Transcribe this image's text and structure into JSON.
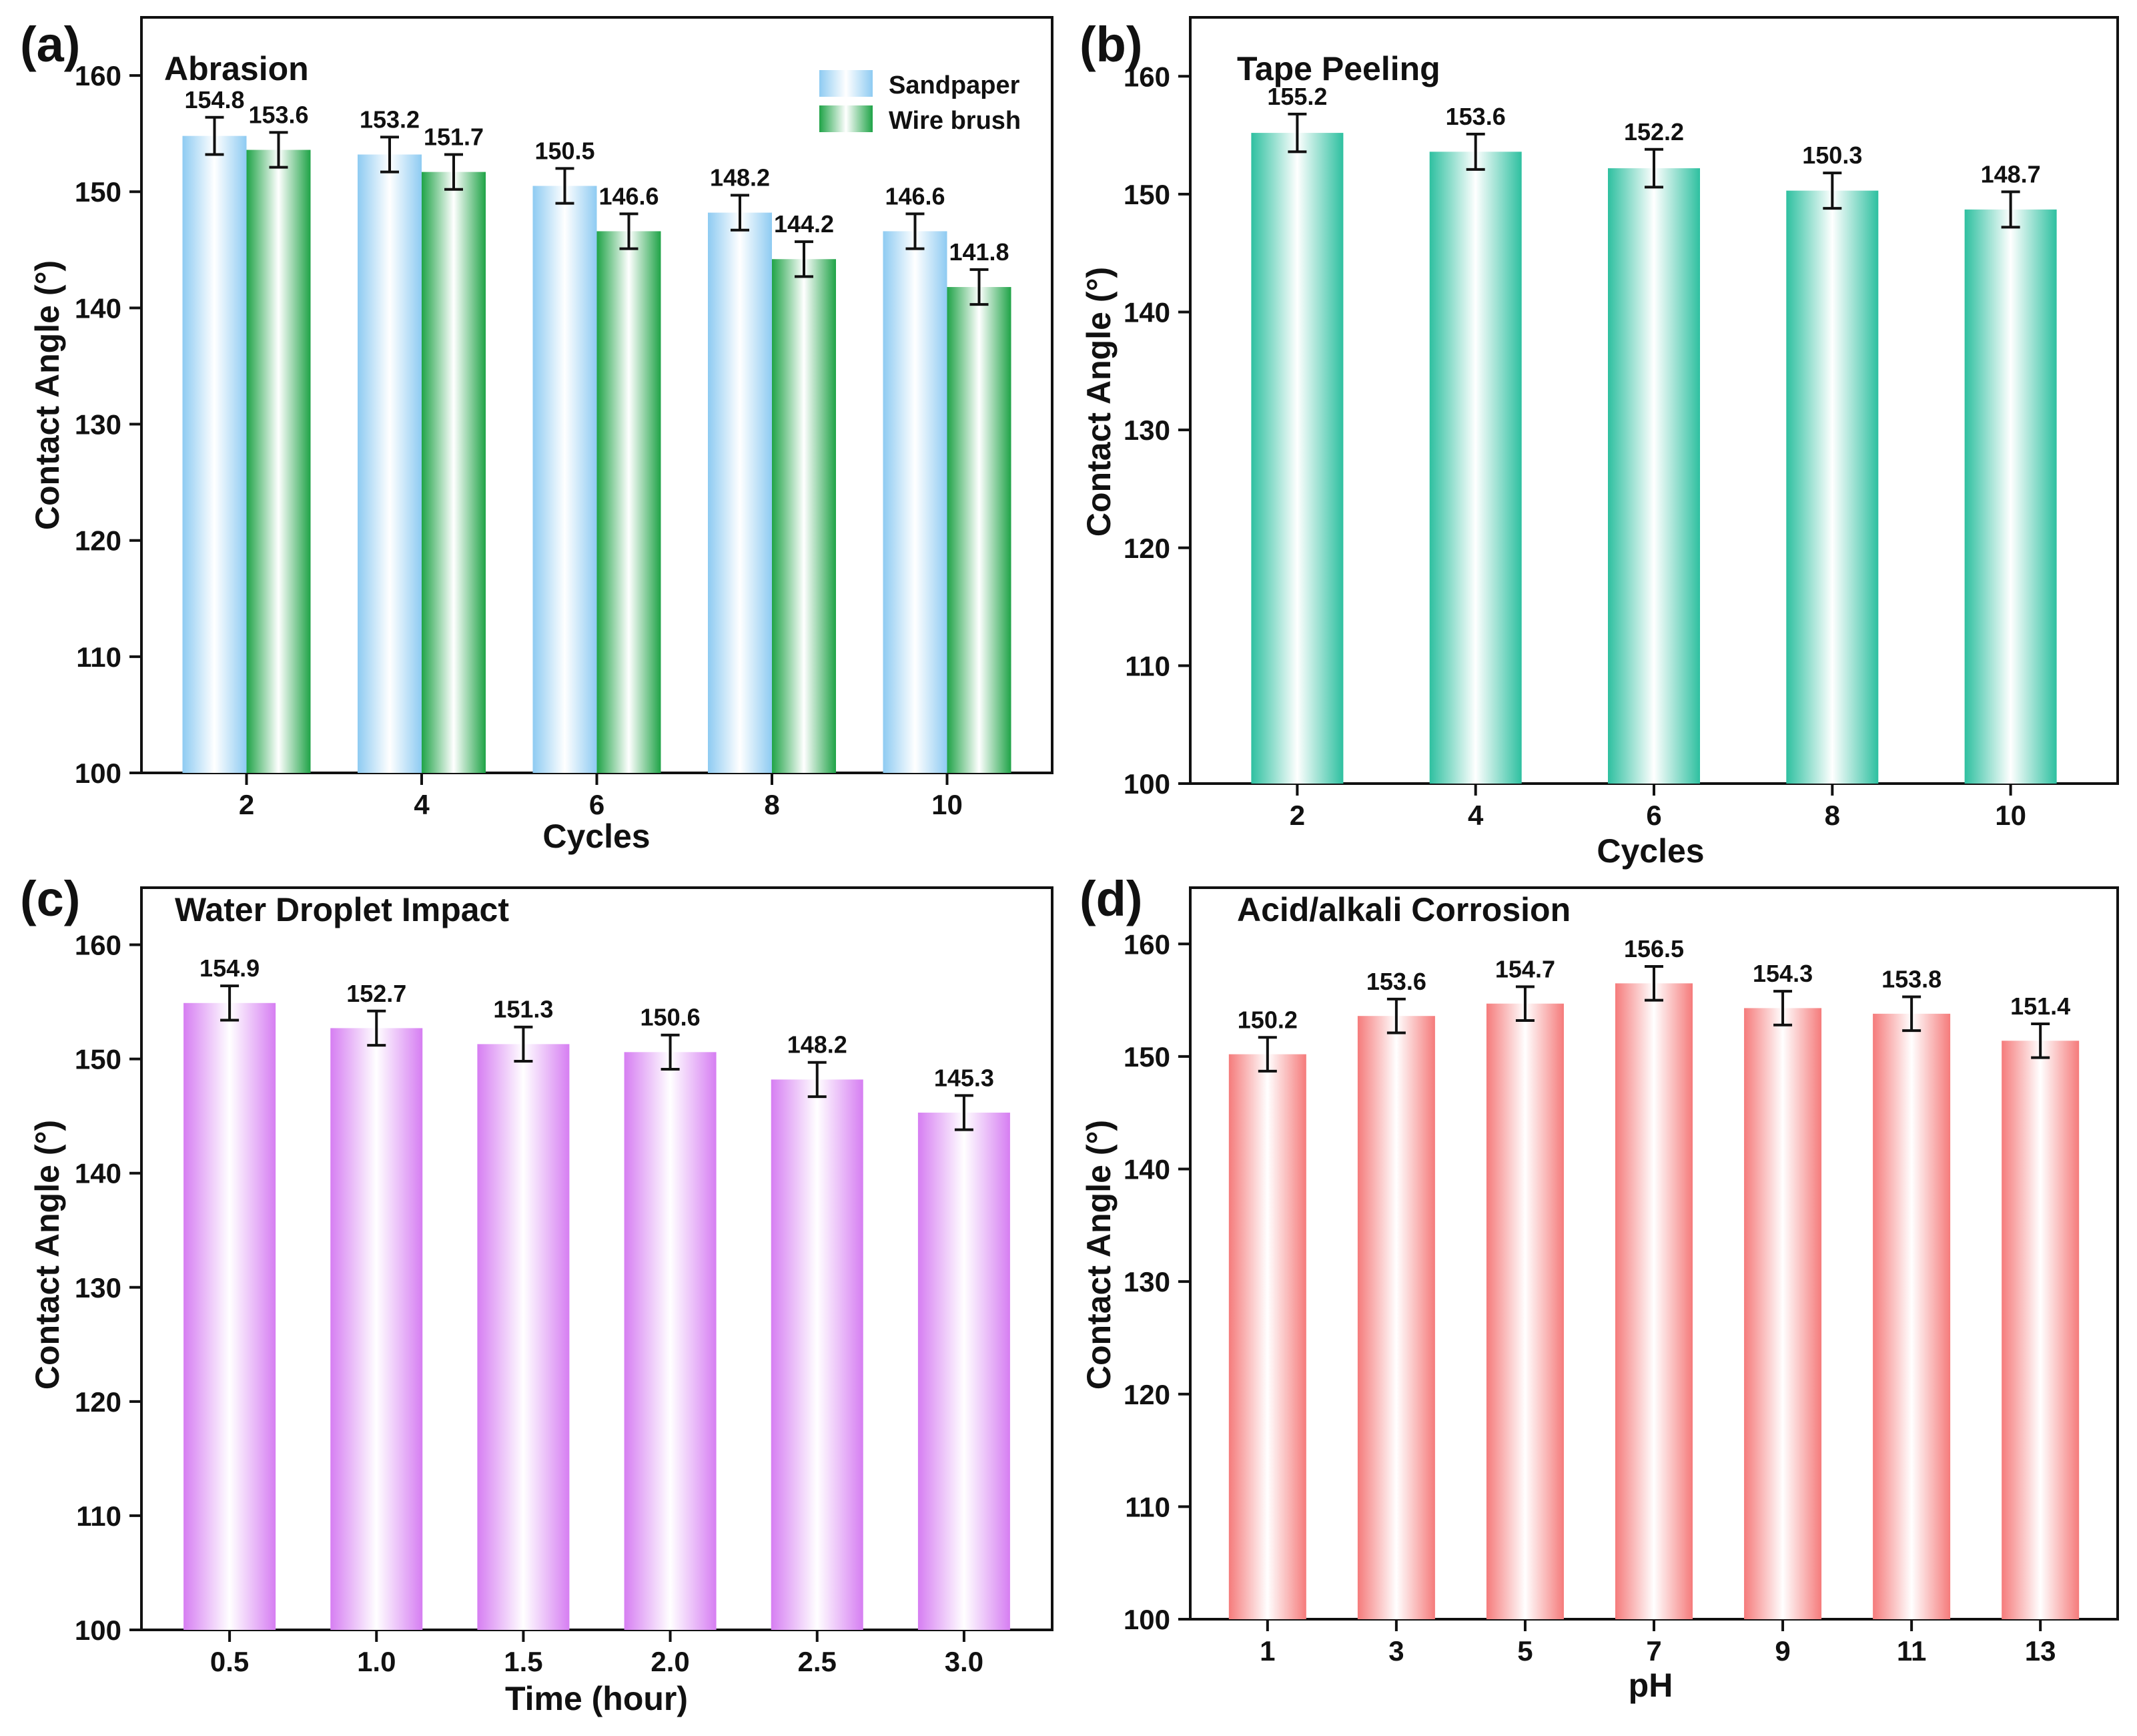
{
  "colors": {
    "sandpaper": "#8ecbf2",
    "wire_brush": "#1fa347",
    "tape_peeling": "#2ec0a0",
    "water_droplet": "#d67ef2",
    "acid_alkali": "#f57b7b"
  },
  "chart_data": [
    {
      "id": "a",
      "panel_label": "(a)",
      "type": "bar",
      "title": "Abrasion",
      "xlabel": "Cycles",
      "ylabel": "Contact Angle (°)",
      "ylim": [
        100,
        165
      ],
      "yticks": [
        100,
        110,
        120,
        130,
        140,
        150,
        160
      ],
      "categories": [
        "2",
        "4",
        "6",
        "8",
        "10"
      ],
      "legend_position": "top-right",
      "series": [
        {
          "name": "Sandpaper",
          "color_key": "sandpaper",
          "values": [
            154.8,
            153.2,
            150.5,
            148.2,
            146.6
          ],
          "labels": [
            "154.8",
            "153.2",
            "150.5",
            "148.2",
            "146.6"
          ],
          "errors": [
            1.6,
            1.5,
            1.5,
            1.5,
            1.5
          ]
        },
        {
          "name": "Wire brush",
          "color_key": "wire_brush",
          "values": [
            153.6,
            151.7,
            146.6,
            144.2,
            141.8
          ],
          "labels": [
            "153.6",
            "151.7",
            "146.6",
            "144.2",
            "141.8"
          ],
          "errors": [
            1.5,
            1.5,
            1.5,
            1.5,
            1.5
          ]
        }
      ]
    },
    {
      "id": "b",
      "panel_label": "(b)",
      "type": "bar",
      "title": "Tape Peeling",
      "xlabel": "Cycles",
      "ylabel": "Contact Angle (°)",
      "ylim": [
        100,
        165
      ],
      "yticks": [
        100,
        110,
        120,
        130,
        140,
        150,
        160
      ],
      "categories": [
        "2",
        "4",
        "6",
        "8",
        "10"
      ],
      "series": [
        {
          "name": "Tape Peeling",
          "color_key": "tape_peeling",
          "values": [
            155.2,
            153.6,
            152.2,
            150.3,
            148.7
          ],
          "labels": [
            "155.2",
            "153.6",
            "152.2",
            "150.3",
            "148.7"
          ],
          "errors": [
            1.6,
            1.5,
            1.6,
            1.5,
            1.5
          ]
        }
      ]
    },
    {
      "id": "c",
      "panel_label": "(c)",
      "type": "bar",
      "title": "Water Droplet Impact",
      "xlabel": "Time (hour)",
      "ylabel": "Contact Angle (°)",
      "ylim": [
        100,
        165
      ],
      "yticks": [
        100,
        110,
        120,
        130,
        140,
        150,
        160
      ],
      "categories": [
        "0.5",
        "1.0",
        "1.5",
        "2.0",
        "2.5",
        "3.0"
      ],
      "series": [
        {
          "name": "Water Droplet Impact",
          "color_key": "water_droplet",
          "values": [
            154.9,
            152.7,
            151.3,
            150.6,
            148.2,
            145.3
          ],
          "labels": [
            "154.9",
            "152.7",
            "151.3",
            "150.6",
            "148.2",
            "145.3"
          ],
          "errors": [
            1.5,
            1.5,
            1.5,
            1.5,
            1.5,
            1.5
          ]
        }
      ]
    },
    {
      "id": "d",
      "panel_label": "(d)",
      "type": "bar",
      "title": "Acid/alkali Corrosion",
      "xlabel": "pH",
      "ylabel": "Contact Angle (°)",
      "ylim": [
        100,
        165
      ],
      "yticks": [
        100,
        110,
        120,
        130,
        140,
        150,
        160
      ],
      "categories": [
        "1",
        "3",
        "5",
        "7",
        "9",
        "11",
        "13"
      ],
      "series": [
        {
          "name": "Acid/alkali Corrosion",
          "color_key": "acid_alkali",
          "values": [
            150.2,
            153.6,
            154.7,
            156.5,
            154.3,
            153.8,
            151.4
          ],
          "labels": [
            "150.2",
            "153.6",
            "154.7",
            "156.5",
            "154.3",
            "153.8",
            "151.4"
          ],
          "errors": [
            1.5,
            1.5,
            1.5,
            1.5,
            1.5,
            1.5,
            1.5
          ]
        }
      ]
    }
  ]
}
